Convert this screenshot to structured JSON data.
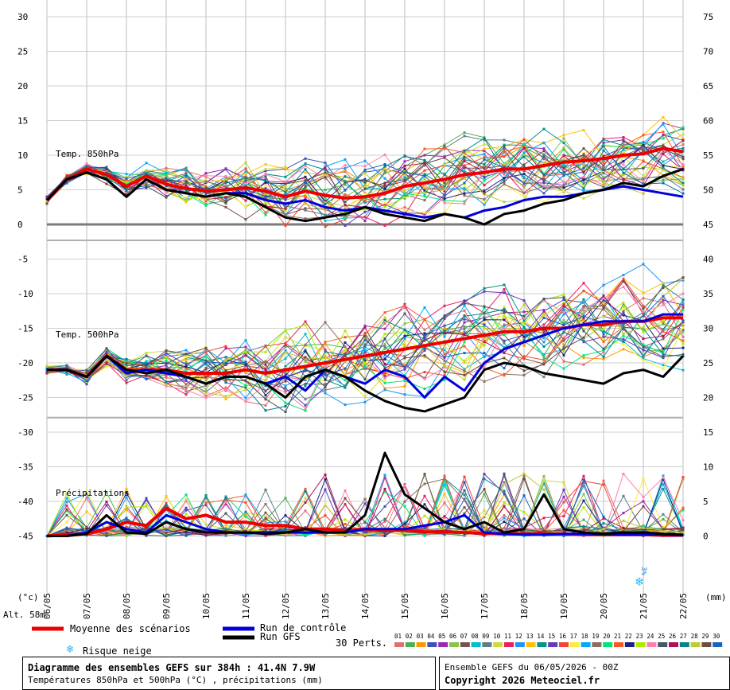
{
  "chart_data": {
    "type": "line",
    "x_dates": [
      "06/05",
      "07/05",
      "08/05",
      "09/05",
      "10/05",
      "11/05",
      "12/05",
      "13/05",
      "14/05",
      "15/05",
      "16/05",
      "17/05",
      "18/05",
      "19/05",
      "20/05",
      "21/05",
      "22/05"
    ],
    "left_ticks": [
      30,
      25,
      20,
      15,
      10,
      5,
      0,
      -5,
      -10,
      -15,
      -20,
      -25,
      -30,
      -35,
      -40,
      -45
    ],
    "right_ticks": [
      75,
      70,
      65,
      60,
      55,
      50,
      45,
      40,
      35,
      30,
      25,
      20,
      15,
      10,
      5,
      0
    ],
    "left_unit": "(°c)",
    "right_unit": "(mm)",
    "altitude_label": "Alt. 58m",
    "panel_labels": {
      "t850": "Temp. 850hPa",
      "t500": "Temp. 500hPa",
      "precip": "Précipitations"
    },
    "snow_label": "3%",
    "snow_x": 14.9,
    "series": [
      {
        "key": "mean850",
        "color": "#ee0000",
        "x": [
          0,
          0.5,
          1,
          1.5,
          2,
          2.5,
          3,
          3.5,
          4,
          4.5,
          5,
          5.5,
          6,
          6.5,
          7,
          7.5,
          8,
          8.5,
          9,
          9.5,
          10,
          10.5,
          11,
          11.5,
          12,
          12.5,
          13,
          13.5,
          14,
          14.5,
          15,
          15.5,
          16
        ],
        "y": [
          3.5,
          6.5,
          8,
          7.2,
          5.5,
          7,
          5.8,
          5.2,
          4.8,
          5,
          5.3,
          4.8,
          4,
          4.8,
          4.2,
          3.8,
          4,
          4.5,
          5.5,
          6,
          6.5,
          7.2,
          7.5,
          8,
          8,
          8.5,
          9,
          9.2,
          9.5,
          10,
          10.2,
          11,
          10.5
        ]
      },
      {
        "key": "ctrl850",
        "color": "#0000dd",
        "x": [
          0,
          0.5,
          1,
          1.5,
          2,
          2.5,
          3,
          3.5,
          4,
          4.5,
          5,
          5.5,
          6,
          6.5,
          7,
          7.5,
          8,
          8.5,
          9,
          9.5,
          10,
          10.5,
          11,
          11.5,
          12,
          12.5,
          13,
          13.5,
          14,
          14.5,
          15,
          15.5,
          16
        ],
        "y": [
          3.5,
          6.5,
          7.5,
          6.5,
          4,
          6.5,
          5,
          4.5,
          4,
          4.5,
          4.5,
          3.5,
          3,
          3.5,
          2.5,
          2,
          2.5,
          2,
          1.5,
          1,
          1.5,
          1,
          2,
          2.5,
          3.5,
          4,
          4,
          4.5,
          5,
          5.5,
          5,
          4.5,
          4
        ]
      },
      {
        "key": "gfs850",
        "color": "#000000",
        "x": [
          0,
          0.5,
          1,
          1.5,
          2,
          2.5,
          3,
          3.5,
          4,
          4.5,
          5,
          5.5,
          6,
          6.5,
          7,
          7.5,
          8,
          8.5,
          9,
          9.5,
          10,
          10.5,
          11,
          11.5,
          12,
          12.5,
          13,
          13.5,
          14,
          14.5,
          15,
          15.5,
          16
        ],
        "y": [
          3.5,
          6.5,
          7.5,
          6.5,
          4,
          6.5,
          5,
          4.5,
          4,
          4.5,
          4,
          2.5,
          1,
          0.5,
          1,
          1.5,
          2.5,
          1.5,
          1,
          0.5,
          1.5,
          1,
          0,
          1.5,
          2,
          3,
          3.5,
          4.5,
          5,
          6,
          5.5,
          7,
          8
        ]
      },
      {
        "key": "mean500",
        "color": "#ee0000",
        "x": [
          0,
          0.5,
          1,
          1.5,
          2,
          2.5,
          3,
          3.5,
          4,
          4.5,
          5,
          5.5,
          6,
          6.5,
          7,
          7.5,
          8,
          8.5,
          9,
          9.5,
          10,
          10.5,
          11,
          11.5,
          12,
          12.5,
          13,
          13.5,
          14,
          14.5,
          15,
          15.5,
          16
        ],
        "y": [
          -21,
          -21,
          -22,
          -19,
          -21,
          -21,
          -21,
          -21.5,
          -21.5,
          -21.5,
          -21,
          -21.5,
          -21,
          -20.5,
          -20,
          -19.5,
          -19,
          -18.5,
          -18,
          -17.5,
          -17,
          -16.5,
          -16,
          -15.5,
          -15.5,
          -15,
          -15,
          -14.5,
          -14.5,
          -14,
          -14,
          -13.5,
          -13.5
        ]
      },
      {
        "key": "ctrl500",
        "color": "#0000dd",
        "x": [
          0,
          0.5,
          1,
          1.5,
          2,
          2.5,
          3,
          3.5,
          4,
          4.5,
          5,
          5.5,
          6,
          6.5,
          7,
          7.5,
          8,
          8.5,
          9,
          9.5,
          10,
          10.5,
          11,
          11.5,
          12,
          12.5,
          13,
          13.5,
          14,
          14.5,
          15,
          15.5,
          16
        ],
        "y": [
          -21,
          -21,
          -22,
          -19,
          -21.5,
          -21,
          -21.5,
          -22,
          -23,
          -22,
          -22,
          -23,
          -22,
          -24,
          -21,
          -22,
          -23,
          -21,
          -22,
          -25,
          -22,
          -24,
          -20,
          -18,
          -17,
          -16,
          -15,
          -14.5,
          -14,
          -14,
          -14,
          -13,
          -13
        ]
      },
      {
        "key": "gfs500",
        "color": "#000000",
        "x": [
          0,
          0.5,
          1,
          1.5,
          2,
          2.5,
          3,
          3.5,
          4,
          4.5,
          5,
          5.5,
          6,
          6.5,
          7,
          7.5,
          8,
          8.5,
          9,
          9.5,
          10,
          10.5,
          11,
          11.5,
          12,
          12.5,
          13,
          13.5,
          14,
          14.5,
          15,
          15.5,
          16
        ],
        "y": [
          -21,
          -21,
          -22,
          -19,
          -21,
          -21.5,
          -21,
          -22,
          -23,
          -22,
          -22,
          -23,
          -25,
          -22,
          -21,
          -22,
          -24,
          -25.5,
          -26.5,
          -27,
          -26,
          -25,
          -21,
          -20,
          -20.5,
          -21.5,
          -22,
          -22.5,
          -23,
          -21.5,
          -21,
          -22,
          -19
        ]
      },
      {
        "key": "meanPrecip",
        "color": "#ee0000",
        "x": [
          0,
          0.5,
          1,
          1.5,
          2,
          2.5,
          3,
          3.5,
          4,
          4.5,
          5,
          5.5,
          6,
          6.5,
          7,
          7.5,
          8,
          8.5,
          9,
          9.5,
          10,
          10.5,
          11,
          11.5,
          12,
          12.5,
          13,
          13.5,
          14,
          14.5,
          15,
          15.5,
          16
        ],
        "y": [
          0,
          0.2,
          0.3,
          1,
          2,
          1.5,
          4,
          2.5,
          3,
          2,
          2,
          1.5,
          1.5,
          1,
          1,
          0.8,
          1,
          0.8,
          0.8,
          0.6,
          0.6,
          0.5,
          0.4,
          0.3,
          0.3,
          0.3,
          0.3,
          0.2,
          0.2,
          0.2,
          0.2,
          0.1,
          0.1
        ]
      },
      {
        "key": "ctrlPrecip",
        "color": "#0000dd",
        "x": [
          0,
          0.5,
          1,
          1.5,
          2,
          2.5,
          3,
          3.5,
          4,
          4.5,
          5,
          5.5,
          6,
          6.5,
          7,
          7.5,
          8,
          8.5,
          9,
          9.5,
          10,
          10.5,
          11,
          11.5,
          12,
          12.5,
          13,
          13.5,
          14,
          14.5,
          15,
          15.5,
          16
        ],
        "y": [
          0,
          0,
          0.5,
          2,
          1,
          0.5,
          3,
          2,
          1,
          0.5,
          0.5,
          0.5,
          0.5,
          0.5,
          0.5,
          0.5,
          1,
          1,
          1,
          1.5,
          2,
          3,
          0.5,
          0.3,
          0.2,
          0.2,
          0.3,
          0.3,
          0.2,
          0.2,
          0.2,
          0.2,
          0.1
        ]
      },
      {
        "key": "gfsPrecip",
        "color": "#000000",
        "x": [
          0,
          0.5,
          1,
          1.5,
          2,
          2.5,
          3,
          3.5,
          4,
          4.5,
          5,
          5.5,
          6,
          6.5,
          7,
          7.5,
          8,
          8.5,
          9,
          9.5,
          10,
          10.5,
          11,
          11.5,
          12,
          12.5,
          13,
          13.5,
          14,
          14.5,
          15,
          15.5,
          16
        ],
        "y": [
          0,
          0,
          0.3,
          3,
          0.5,
          0.3,
          2,
          1,
          0.5,
          0.5,
          0.5,
          0.3,
          0.5,
          1,
          0.5,
          0.5,
          3,
          12,
          6,
          4,
          2,
          1,
          2,
          0.5,
          1,
          6,
          1,
          0.5,
          0.3,
          0.5,
          0.5,
          0.3,
          0.2
        ]
      }
    ]
  },
  "legend": {
    "mean": {
      "label": "Moyenne des scénarios",
      "color": "#ee0000"
    },
    "ctrl": {
      "label": "Run de contrôle",
      "color": "#0000dd"
    },
    "gfs": {
      "label": "Run GFS",
      "color": "#000000"
    },
    "snow": {
      "label": "Risque neige"
    },
    "perts_label": "30 Perts.",
    "pert_numbers": [
      "01",
      "02",
      "03",
      "04",
      "05",
      "06",
      "07",
      "08",
      "09",
      "10",
      "11",
      "12",
      "13",
      "14",
      "15",
      "16",
      "17",
      "18",
      "19",
      "20",
      "21",
      "22",
      "23",
      "24",
      "25",
      "26",
      "27",
      "28",
      "29",
      "30"
    ],
    "pert_colors": [
      "#e07070",
      "#4caf50",
      "#ff9800",
      "#3f51b5",
      "#9c27b0",
      "#8bc34a",
      "#795548",
      "#00bcd4",
      "#607d8b",
      "#cddc39",
      "#e91e63",
      "#2196f3",
      "#ffc107",
      "#009688",
      "#673ab7",
      "#f44336",
      "#ffeb3b",
      "#03a9f4",
      "#8d6e63",
      "#00e676",
      "#ff5722",
      "#1a237e",
      "#aeea00",
      "#ff80ab",
      "#455a64",
      "#ad1457",
      "#00838f",
      "#c0ca33",
      "#6d4c41",
      "#1565c0"
    ]
  },
  "footer": {
    "title": "Diagramme des ensembles GEFS sur 384h : 41.4N 7.9W",
    "subtitle": "Températures 850hPa et 500hPa (°C) , précipitations (mm)",
    "run_info": "Ensemble GEFS du 06/05/2026 - 00Z",
    "copyright": "Copyright 2026 Meteociel.fr"
  }
}
